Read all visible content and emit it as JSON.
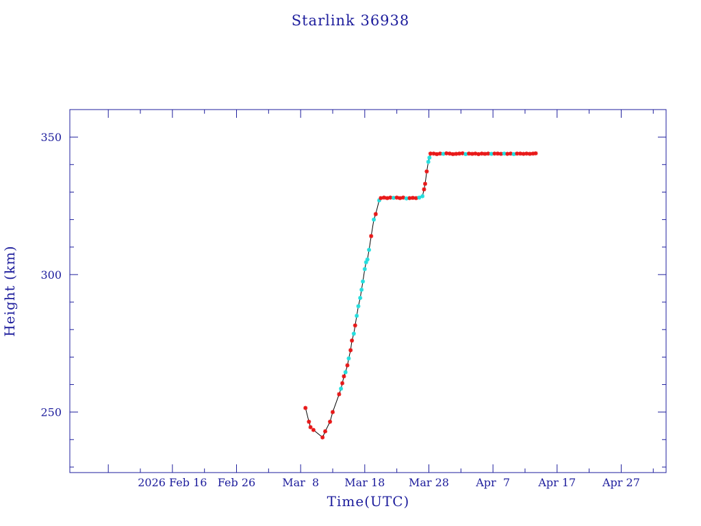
{
  "chart_data": {
    "type": "scatter",
    "title": "Starlink 36938",
    "xlabel": "Time(UTC)",
    "ylabel": "Height (km)",
    "xlim": [
      "2026-01-31",
      "2026-05-04"
    ],
    "ylim": [
      228,
      360
    ],
    "grid": false,
    "x_tick_labels": [
      {
        "label": "2026 Feb 16",
        "date": "2026-02-16"
      },
      {
        "label": "Feb 26",
        "date": "2026-02-26"
      },
      {
        "label": "Mar  8",
        "date": "2026-03-08"
      },
      {
        "label": "Mar 18",
        "date": "2026-03-18"
      },
      {
        "label": "Mar 28",
        "date": "2026-03-28"
      },
      {
        "label": "Apr  7",
        "date": "2026-04-07"
      },
      {
        "label": "Apr 17",
        "date": "2026-04-17"
      },
      {
        "label": "Apr 27",
        "date": "2026-04-27"
      }
    ],
    "y_ticks_major": [
      250,
      300,
      350
    ],
    "y_ticks_minor": [
      230,
      240,
      260,
      270,
      280,
      290,
      310,
      320,
      330,
      340
    ],
    "colors": {
      "axis": "#1c1c9c",
      "line": "#000000",
      "marker_a": "#e81818",
      "marker_b": "#22dede"
    },
    "series": [
      {
        "marker": "star",
        "color": "#000000",
        "points": [
          {
            "date": "2026-03-08 18:00",
            "y": 251.5,
            "c": "a"
          },
          {
            "date": "2026-03-09 07:00",
            "y": 246.5,
            "c": "a"
          },
          {
            "date": "2026-03-09 13:00",
            "y": 244.5,
            "c": "a"
          },
          {
            "date": "2026-03-10 00:00",
            "y": 243.5,
            "c": "a"
          },
          {
            "date": "2026-03-11 10:00",
            "y": 240.8,
            "c": "a"
          },
          {
            "date": "2026-03-11 20:00",
            "y": 243.0,
            "c": "a"
          },
          {
            "date": "2026-03-12 14:00",
            "y": 246.5,
            "c": "a"
          },
          {
            "date": "2026-03-13 00:00",
            "y": 250.0,
            "c": "a"
          },
          {
            "date": "2026-03-14 00:00",
            "y": 256.5,
            "c": "a"
          },
          {
            "date": "2026-03-14 07:00",
            "y": 258.5,
            "c": "b"
          },
          {
            "date": "2026-03-14 12:00",
            "y": 260.5,
            "c": "a"
          },
          {
            "date": "2026-03-14 18:00",
            "y": 263.0,
            "c": "a"
          },
          {
            "date": "2026-03-15 00:00",
            "y": 264.5,
            "c": "b"
          },
          {
            "date": "2026-03-15 07:00",
            "y": 267.0,
            "c": "a"
          },
          {
            "date": "2026-03-15 12:00",
            "y": 269.5,
            "c": "b"
          },
          {
            "date": "2026-03-15 19:00",
            "y": 272.5,
            "c": "a"
          },
          {
            "date": "2026-03-16 00:00",
            "y": 276.0,
            "c": "a"
          },
          {
            "date": "2026-03-16 07:00",
            "y": 278.5,
            "c": "b"
          },
          {
            "date": "2026-03-16 12:00",
            "y": 281.5,
            "c": "a"
          },
          {
            "date": "2026-03-16 18:00",
            "y": 285.0,
            "c": "b"
          },
          {
            "date": "2026-03-17 00:00",
            "y": 288.5,
            "c": "b"
          },
          {
            "date": "2026-03-17 07:00",
            "y": 291.5,
            "c": "b"
          },
          {
            "date": "2026-03-17 12:00",
            "y": 294.5,
            "c": "b"
          },
          {
            "date": "2026-03-17 17:00",
            "y": 297.5,
            "c": "b"
          },
          {
            "date": "2026-03-18 00:00",
            "y": 302.0,
            "c": "b"
          },
          {
            "date": "2026-03-18 05:00",
            "y": 304.5,
            "c": "b"
          },
          {
            "date": "2026-03-18 10:00",
            "y": 305.5,
            "c": "b"
          },
          {
            "date": "2026-03-18 16:00",
            "y": 309.0,
            "c": "b"
          },
          {
            "date": "2026-03-19 00:00",
            "y": 314.0,
            "c": "a"
          },
          {
            "date": "2026-03-19 10:00",
            "y": 320.0,
            "c": "b"
          },
          {
            "date": "2026-03-19 17:00",
            "y": 322.0,
            "c": "a"
          },
          {
            "date": "2026-03-20 06:00",
            "y": 327.0,
            "c": "b"
          },
          {
            "date": "2026-03-20 12:00",
            "y": 327.8,
            "c": "a"
          },
          {
            "date": "2026-03-21 00:00",
            "y": 328.0,
            "c": "a"
          },
          {
            "date": "2026-03-21 12:00",
            "y": 327.8,
            "c": "a"
          },
          {
            "date": "2026-03-22 00:00",
            "y": 328.0,
            "c": "a"
          },
          {
            "date": "2026-03-22 12:00",
            "y": 327.9,
            "c": "b"
          },
          {
            "date": "2026-03-23 00:00",
            "y": 328.0,
            "c": "a"
          },
          {
            "date": "2026-03-23 12:00",
            "y": 327.8,
            "c": "a"
          },
          {
            "date": "2026-03-24 00:00",
            "y": 328.0,
            "c": "a"
          },
          {
            "date": "2026-03-24 12:00",
            "y": 327.7,
            "c": "b"
          },
          {
            "date": "2026-03-25 00:00",
            "y": 327.8,
            "c": "a"
          },
          {
            "date": "2026-03-25 12:00",
            "y": 327.9,
            "c": "a"
          },
          {
            "date": "2026-03-26 00:00",
            "y": 327.8,
            "c": "a"
          },
          {
            "date": "2026-03-26 12:00",
            "y": 328.0,
            "c": "b"
          },
          {
            "date": "2026-03-27 00:00",
            "y": 328.5,
            "c": "b"
          },
          {
            "date": "2026-03-27 06:00",
            "y": 331.0,
            "c": "a"
          },
          {
            "date": "2026-03-27 10:00",
            "y": 333.0,
            "c": "a"
          },
          {
            "date": "2026-03-27 16:00",
            "y": 337.5,
            "c": "a"
          },
          {
            "date": "2026-03-27 22:00",
            "y": 341.0,
            "c": "b"
          },
          {
            "date": "2026-03-28 02:00",
            "y": 342.5,
            "c": "b"
          },
          {
            "date": "2026-03-28 06:00",
            "y": 344.0,
            "c": "a"
          },
          {
            "date": "2026-03-28 18:00",
            "y": 344.0,
            "c": "a"
          },
          {
            "date": "2026-03-29 06:00",
            "y": 343.8,
            "c": "a"
          },
          {
            "date": "2026-03-29 18:00",
            "y": 344.0,
            "c": "a"
          },
          {
            "date": "2026-03-30 06:00",
            "y": 343.9,
            "c": "b"
          },
          {
            "date": "2026-03-30 18:00",
            "y": 344.1,
            "c": "a"
          },
          {
            "date": "2026-03-31 06:00",
            "y": 344.0,
            "c": "a"
          },
          {
            "date": "2026-03-31 18:00",
            "y": 343.8,
            "c": "a"
          },
          {
            "date": "2026-04-01 06:00",
            "y": 343.9,
            "c": "a"
          },
          {
            "date": "2026-04-01 18:00",
            "y": 344.0,
            "c": "a"
          },
          {
            "date": "2026-04-02 06:00",
            "y": 344.1,
            "c": "a"
          },
          {
            "date": "2026-04-02 18:00",
            "y": 343.8,
            "c": "b"
          },
          {
            "date": "2026-04-03 06:00",
            "y": 344.0,
            "c": "a"
          },
          {
            "date": "2026-04-03 18:00",
            "y": 343.9,
            "c": "a"
          },
          {
            "date": "2026-04-04 06:00",
            "y": 344.0,
            "c": "a"
          },
          {
            "date": "2026-04-04 18:00",
            "y": 343.8,
            "c": "a"
          },
          {
            "date": "2026-04-05 06:00",
            "y": 344.0,
            "c": "a"
          },
          {
            "date": "2026-04-05 18:00",
            "y": 343.9,
            "c": "a"
          },
          {
            "date": "2026-04-06 06:00",
            "y": 344.0,
            "c": "a"
          },
          {
            "date": "2026-04-06 18:00",
            "y": 343.9,
            "c": "b"
          },
          {
            "date": "2026-04-07 06:00",
            "y": 344.0,
            "c": "a"
          },
          {
            "date": "2026-04-07 18:00",
            "y": 344.0,
            "c": "a"
          },
          {
            "date": "2026-04-08 06:00",
            "y": 343.9,
            "c": "a"
          },
          {
            "date": "2026-04-08 18:00",
            "y": 344.0,
            "c": "b"
          },
          {
            "date": "2026-04-09 06:00",
            "y": 343.9,
            "c": "a"
          },
          {
            "date": "2026-04-09 18:00",
            "y": 344.0,
            "c": "a"
          },
          {
            "date": "2026-04-10 06:00",
            "y": 343.8,
            "c": "b"
          },
          {
            "date": "2026-04-10 18:00",
            "y": 344.0,
            "c": "a"
          },
          {
            "date": "2026-04-11 06:00",
            "y": 344.0,
            "c": "a"
          },
          {
            "date": "2026-04-11 18:00",
            "y": 343.9,
            "c": "a"
          },
          {
            "date": "2026-04-12 06:00",
            "y": 344.0,
            "c": "a"
          },
          {
            "date": "2026-04-12 18:00",
            "y": 343.9,
            "c": "a"
          },
          {
            "date": "2026-04-13 06:00",
            "y": 344.0,
            "c": "a"
          },
          {
            "date": "2026-04-13 16:00",
            "y": 344.1,
            "c": "a"
          }
        ]
      }
    ]
  }
}
